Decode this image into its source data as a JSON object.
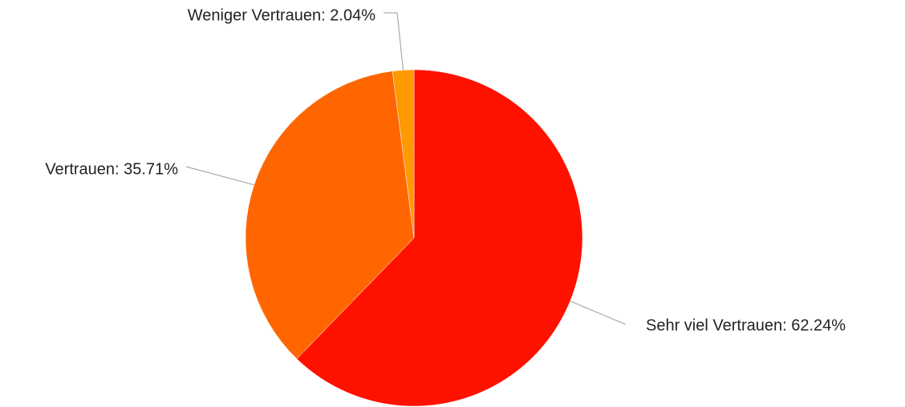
{
  "chart_data": {
    "type": "pie",
    "values": [
      62.24,
      35.71,
      2.04
    ],
    "value_labels": [
      "Sehr viel Vertrauen: 62.24%",
      "Vertrauen: 35.71%",
      "Weniger Vertrauen: 2.04%"
    ],
    "colors": [
      "#ff1100",
      "#ff6600",
      "#ff9900"
    ]
  }
}
